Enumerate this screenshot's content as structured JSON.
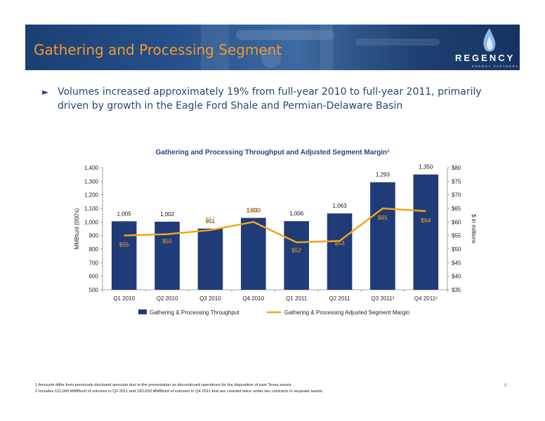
{
  "header": {
    "title": "Gathering and Processing Segment",
    "logo_text": "REGENCY",
    "logo_subtext": "ENERGY PARTNERS"
  },
  "bullet": {
    "marker": "►",
    "text": "Volumes increased approximately 19% from full-year 2010 to full-year 2011, primarily driven by growth in the Eagle Ford Shale and Permian-Delaware Basin"
  },
  "chart_data": {
    "type": "bar",
    "title": "Gathering and Processing Throughput and Adjusted Segment Margin",
    "title_superscript": "1",
    "categories": [
      "Q1 2010",
      "Q2 2010",
      "Q3 2010",
      "Q4 2010",
      "Q1 2011",
      "Q2 2011",
      "Q3 2011²",
      "Q4 2011²"
    ],
    "series": [
      {
        "name": "Gathering & Processing Throughput",
        "type": "bar",
        "axis": "left",
        "values": [
          1005,
          1002,
          951,
          1030,
          1006,
          1063,
          1293,
          1350
        ],
        "labels": [
          "1,005",
          "1,002",
          "951",
          "1,030",
          "1,006",
          "1,063",
          "1,293",
          "1,350"
        ],
        "color": "#1f3c78"
      },
      {
        "name": "Gathering & Processing Adjusted Segment Margin",
        "type": "line",
        "axis": "right",
        "values": [
          55,
          55.5,
          57,
          60,
          52.5,
          53,
          65,
          64
        ],
        "labels": [
          "$55",
          "$55",
          "$57",
          "$60",
          "$52",
          "$53",
          "$65",
          "$64"
        ],
        "color": "#f5a21c"
      }
    ],
    "ylabel": "MMBtu/d (000's)",
    "ylabel_right": "$ in millions",
    "ylim": [
      500,
      1400
    ],
    "ylim_right": [
      35,
      80
    ],
    "yticks": [
      "500",
      "600",
      "700",
      "800",
      "900",
      "1,000",
      "1,100",
      "1,200",
      "1,300",
      "1,400"
    ],
    "yticks_right": [
      "$35",
      "$40",
      "$45",
      "$50",
      "$55",
      "$60",
      "$65",
      "$70",
      "$75",
      "$80"
    ],
    "legend_position": "bottom",
    "grid": false
  },
  "footnotes": [
    "1   Amounts differ from previously disclosed amounts due to the presentation as discontinued operations for the disposition of east Texas assets",
    "2   Includes 111,000 MMBtu/d of volumes in Q3 2011 and 183,000 MMBtu/d of volumes in Q4 2011 that are counted twice under two contracts in separate assets"
  ],
  "page_number": "6",
  "colors": {
    "banner": "#1f467f",
    "title": "#f39a2c",
    "bar": "#1f3c78",
    "line": "#f5a21c",
    "text_blue": "#24477a"
  }
}
